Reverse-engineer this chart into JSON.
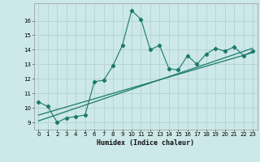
{
  "xlabel": "Humidex (Indice chaleur)",
  "bg_color": "#cce8e8",
  "grid_color": "#b8d4d4",
  "line_color": "#1a7a6a",
  "x_ticks": [
    0,
    1,
    2,
    3,
    4,
    5,
    6,
    7,
    8,
    9,
    10,
    11,
    12,
    13,
    14,
    15,
    16,
    17,
    18,
    19,
    20,
    21,
    22,
    23
  ],
  "ylim": [
    8.5,
    17.2
  ],
  "xlim": [
    -0.5,
    23.5
  ],
  "yticks": [
    9,
    10,
    11,
    12,
    13,
    14,
    15,
    16
  ],
  "series1_x": [
    0,
    1,
    2,
    3,
    4,
    5,
    6,
    7,
    8,
    9,
    10,
    11,
    12,
    13,
    14,
    15,
    16,
    17,
    18,
    19,
    20,
    21,
    22,
    23
  ],
  "series1_y": [
    10.4,
    10.1,
    9.0,
    9.3,
    9.4,
    9.5,
    11.8,
    11.9,
    12.9,
    14.3,
    16.7,
    16.1,
    14.0,
    14.3,
    12.7,
    12.6,
    13.6,
    13.0,
    13.7,
    14.1,
    13.9,
    14.2,
    13.6,
    13.9
  ],
  "trend1_x": [
    0,
    23
  ],
  "trend1_y": [
    9.5,
    13.8
  ],
  "trend2_x": [
    0,
    23
  ],
  "trend2_y": [
    9.1,
    14.1
  ]
}
